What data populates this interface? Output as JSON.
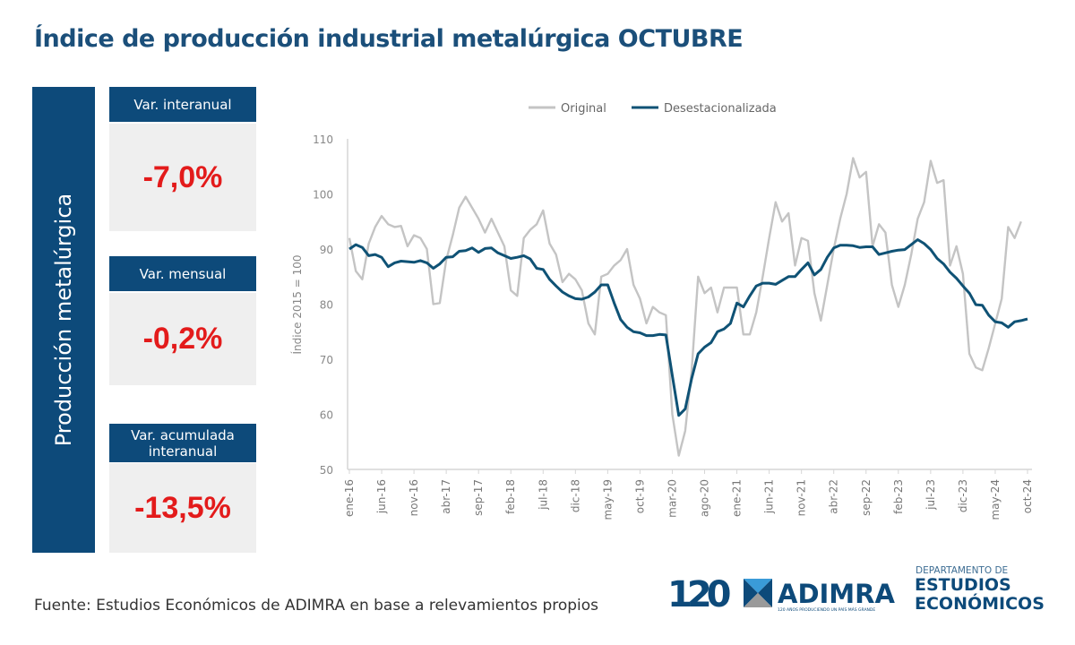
{
  "title": "Índice de producción industrial metalúrgica OCTUBRE",
  "sidebar_label": "Producción metalúrgica",
  "cards": [
    {
      "label": "Var. interanual",
      "value": "-7,0%"
    },
    {
      "label": "Var. mensual",
      "value": "-0,2%"
    },
    {
      "label": "Var. acumulada interanual",
      "value": "-13,5%"
    }
  ],
  "footer": "Fuente: Estudios Económicos de ADIMRA en base a relevamientos propios",
  "logos": {
    "adimra": "ADIMRA",
    "anniversary": "120",
    "adimra_tagline": "120 AÑOS PRODUCIENDO UN PAÍS MÁS GRANDE",
    "dept_line1": "DEPARTAMENTO DE",
    "dept_line2": "ESTUDIOS",
    "dept_line3": "ECONÓMICOS"
  },
  "colors": {
    "brand": "#0d4a7a",
    "negative": "#e31b1b",
    "original": "#c4c4c4",
    "desestacionalizada": "#0f5275"
  },
  "chart_data": {
    "type": "line",
    "ylabel": "Índice 2015 = 100",
    "ylim": [
      50,
      110
    ],
    "yticks": [
      50,
      60,
      70,
      80,
      90,
      100,
      110
    ],
    "x_start": "ene-16",
    "x_end": "oct-24",
    "frequency": "monthly",
    "xtick_labels": [
      "ene-16",
      "jun-16",
      "nov-16",
      "abr-17",
      "sep-17",
      "feb-18",
      "jul-18",
      "dic-18",
      "may-19",
      "oct-19",
      "mar-20",
      "ago-20",
      "ene-21",
      "jun-21",
      "nov-21",
      "abr-22",
      "sep-22",
      "feb-23",
      "jul-23",
      "dic-23",
      "may-24",
      "oct-24"
    ],
    "legend_position": "top",
    "grid": false,
    "series": [
      {
        "name": "Original",
        "values": [
          92,
          86,
          84.5,
          91,
          94,
          96,
          94.5,
          94,
          94.2,
          90.5,
          92.5,
          92,
          90,
          80,
          80.2,
          88,
          92.5,
          97.5,
          99.5,
          97.5,
          95.5,
          93,
          95.5,
          93,
          90.5,
          82.5,
          81.5,
          92,
          93.5,
          94.5,
          97,
          91,
          89,
          84,
          85.5,
          84.5,
          82.5,
          76.5,
          74.5,
          85,
          85.5,
          87,
          88,
          90,
          83.5,
          81,
          76.5,
          79.5,
          78.5,
          78,
          60,
          52.5,
          57,
          68,
          85,
          82,
          83,
          78.5,
          83,
          83,
          83,
          74.5,
          74.5,
          78.5,
          85,
          92,
          98.5,
          95,
          96.5,
          87,
          92,
          91.5,
          82,
          77,
          83.5,
          90,
          95.5,
          100,
          106.5,
          103,
          104,
          90.5,
          94.5,
          93,
          83.5,
          79.5,
          83.5,
          89,
          95.5,
          98.5,
          106,
          102,
          102.5,
          87,
          90.5,
          85.5,
          71,
          68.5,
          68,
          72,
          76.5,
          81,
          94,
          92,
          95,
          null
        ]
      },
      {
        "name": "Desestacionalizada",
        "values": [
          90,
          90.8,
          90.3,
          88.8,
          89,
          88.5,
          86.8,
          87.5,
          87.8,
          87.7,
          87.6,
          87.9,
          87.5,
          86.5,
          87.3,
          88.5,
          88.6,
          89.6,
          89.7,
          90.2,
          89.4,
          90.1,
          90.2,
          89.3,
          88.8,
          88.3,
          88.5,
          88.8,
          88.2,
          86.5,
          86.3,
          84.5,
          83.3,
          82.2,
          81.5,
          81,
          80.9,
          81.3,
          82.2,
          83.5,
          83.5,
          80.2,
          77.2,
          75.8,
          75,
          74.8,
          74.3,
          74.3,
          74.5,
          74.4,
          67,
          59.8,
          61,
          66.5,
          71,
          72.2,
          73,
          75,
          75.5,
          76.5,
          80.2,
          79.5,
          81.5,
          83.3,
          83.8,
          83.8,
          83.6,
          84.3,
          85,
          85,
          86.3,
          87.5,
          85.3,
          86.3,
          88.5,
          90.2,
          90.7,
          90.7,
          90.6,
          90.3,
          90.4,
          90.4,
          89,
          89.3,
          89.6,
          89.8,
          89.9,
          90.8,
          91.7,
          91,
          89.9,
          88.3,
          87.3,
          85.8,
          84.7,
          83.3,
          82,
          79.9,
          79.8,
          78,
          76.8,
          76.6,
          75.8,
          76.8,
          77,
          77.3
        ]
      }
    ]
  }
}
